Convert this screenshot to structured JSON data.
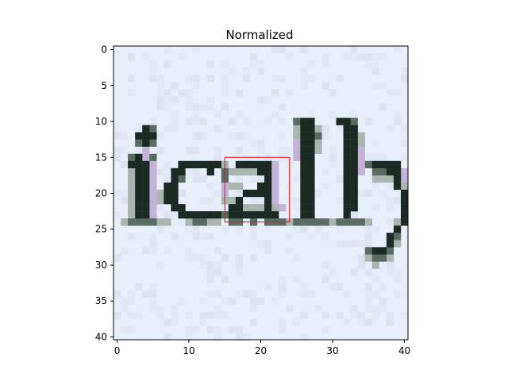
{
  "chart_data": {
    "type": "heatmap",
    "title": "Normalized",
    "image_description_text": "ically",
    "xlim": [
      -0.5,
      40.5
    ],
    "ylim": [
      40.5,
      -0.5
    ],
    "xticks": [
      0,
      10,
      20,
      30,
      40
    ],
    "yticks": [
      0,
      5,
      10,
      15,
      20,
      25,
      30,
      35,
      40
    ],
    "grid": false,
    "legend": "none",
    "highlight_box": {
      "x0": 15,
      "y0": 15,
      "x1": 24,
      "y1": 24
    },
    "colors": {
      "background": "#e9eefb",
      "ink": "#1c2a24",
      "ink_mid": "#5a6b63",
      "ink_light": "#a9b5ae",
      "tint_purple": "#c4b2d9",
      "highlight": "#e81a1a"
    },
    "ink_pixels": [
      [
        4,
        11
      ],
      [
        3,
        12
      ],
      [
        4,
        12
      ],
      [
        5,
        12
      ],
      [
        4,
        13
      ],
      [
        3,
        15
      ],
      [
        3,
        16
      ],
      [
        3,
        17
      ],
      [
        3,
        18
      ],
      [
        3,
        19
      ],
      [
        3,
        20
      ],
      [
        3,
        21
      ],
      [
        3,
        22
      ],
      [
        3,
        23
      ],
      [
        4,
        16
      ],
      [
        4,
        17
      ],
      [
        4,
        18
      ],
      [
        4,
        19
      ],
      [
        4,
        20
      ],
      [
        4,
        21
      ],
      [
        4,
        22
      ],
      [
        4,
        23
      ],
      [
        2,
        16
      ],
      [
        9,
        16
      ],
      [
        10,
        16
      ],
      [
        11,
        16
      ],
      [
        12,
        16
      ],
      [
        13,
        16
      ],
      [
        14,
        16
      ],
      [
        8,
        17
      ],
      [
        9,
        17
      ],
      [
        13,
        17
      ],
      [
        8,
        18
      ],
      [
        7,
        19
      ],
      [
        8,
        19
      ],
      [
        7,
        20
      ],
      [
        8,
        20
      ],
      [
        7,
        21
      ],
      [
        8,
        21
      ],
      [
        8,
        22
      ],
      [
        9,
        22
      ],
      [
        9,
        23
      ],
      [
        10,
        23
      ],
      [
        11,
        23
      ],
      [
        12,
        23
      ],
      [
        13,
        23
      ],
      [
        14,
        23
      ],
      [
        17,
        16
      ],
      [
        18,
        16
      ],
      [
        19,
        16
      ],
      [
        20,
        16
      ],
      [
        21,
        16
      ],
      [
        20,
        17
      ],
      [
        21,
        17
      ],
      [
        21,
        18
      ],
      [
        21,
        19
      ],
      [
        20,
        19
      ],
      [
        18,
        20
      ],
      [
        19,
        20
      ],
      [
        20,
        20
      ],
      [
        21,
        20
      ],
      [
        17,
        21
      ],
      [
        21,
        21
      ],
      [
        16,
        22
      ],
      [
        17,
        22
      ],
      [
        21,
        22
      ],
      [
        16,
        23
      ],
      [
        17,
        23
      ],
      [
        18,
        23
      ],
      [
        19,
        23
      ],
      [
        20,
        23
      ],
      [
        21,
        23
      ],
      [
        22,
        23
      ],
      [
        26,
        10
      ],
      [
        26,
        11
      ],
      [
        26,
        12
      ],
      [
        26,
        13
      ],
      [
        26,
        14
      ],
      [
        26,
        15
      ],
      [
        26,
        16
      ],
      [
        26,
        17
      ],
      [
        26,
        18
      ],
      [
        26,
        19
      ],
      [
        26,
        20
      ],
      [
        26,
        21
      ],
      [
        26,
        22
      ],
      [
        26,
        23
      ],
      [
        27,
        10
      ],
      [
        27,
        11
      ],
      [
        27,
        12
      ],
      [
        27,
        13
      ],
      [
        27,
        14
      ],
      [
        27,
        15
      ],
      [
        27,
        16
      ],
      [
        27,
        17
      ],
      [
        27,
        18
      ],
      [
        27,
        19
      ],
      [
        27,
        20
      ],
      [
        27,
        21
      ],
      [
        27,
        22
      ],
      [
        27,
        23
      ],
      [
        31,
        10
      ],
      [
        32,
        10
      ],
      [
        32,
        11
      ],
      [
        32,
        12
      ],
      [
        32,
        13
      ],
      [
        32,
        14
      ],
      [
        32,
        15
      ],
      [
        32,
        16
      ],
      [
        32,
        17
      ],
      [
        32,
        18
      ],
      [
        32,
        19
      ],
      [
        32,
        20
      ],
      [
        32,
        21
      ],
      [
        32,
        22
      ],
      [
        32,
        23
      ],
      [
        33,
        11
      ],
      [
        33,
        12
      ],
      [
        33,
        13
      ],
      [
        33,
        14
      ],
      [
        33,
        15
      ],
      [
        33,
        16
      ],
      [
        33,
        17
      ],
      [
        33,
        18
      ],
      [
        33,
        19
      ],
      [
        33,
        20
      ],
      [
        33,
        21
      ],
      [
        33,
        22
      ],
      [
        36,
        16
      ],
      [
        37,
        16
      ],
      [
        38,
        16
      ],
      [
        39,
        16
      ],
      [
        38,
        17
      ],
      [
        39,
        17
      ],
      [
        39,
        18
      ],
      [
        39,
        19
      ],
      [
        40,
        20
      ],
      [
        40,
        21
      ],
      [
        40,
        22
      ],
      [
        40,
        23
      ],
      [
        40,
        24
      ],
      [
        39,
        25
      ],
      [
        38,
        26
      ],
      [
        38,
        27
      ],
      [
        37,
        28
      ],
      [
        36,
        28
      ]
    ],
    "mid_pixels": [
      [
        5,
        11
      ],
      [
        3,
        13
      ],
      [
        5,
        13
      ],
      [
        2,
        15
      ],
      [
        5,
        15
      ],
      [
        2,
        24
      ],
      [
        3,
        24
      ],
      [
        4,
        24
      ],
      [
        5,
        24
      ],
      [
        9,
        18
      ],
      [
        15,
        17
      ],
      [
        15,
        18
      ],
      [
        15,
        23
      ],
      [
        16,
        24
      ],
      [
        17,
        24
      ],
      [
        19,
        24
      ],
      [
        21,
        24
      ],
      [
        22,
        24
      ],
      [
        23,
        24
      ],
      [
        25,
        24
      ],
      [
        26,
        24
      ],
      [
        27,
        24
      ],
      [
        28,
        24
      ],
      [
        29,
        24
      ],
      [
        31,
        24
      ],
      [
        32,
        24
      ],
      [
        33,
        24
      ],
      [
        34,
        24
      ],
      [
        35,
        16
      ],
      [
        36,
        17
      ],
      [
        37,
        17
      ],
      [
        39,
        26
      ],
      [
        38,
        28
      ],
      [
        35,
        28
      ],
      [
        36,
        29
      ],
      [
        37,
        29
      ],
      [
        33,
        10
      ],
      [
        25,
        10
      ],
      [
        28,
        12
      ],
      [
        11,
        24
      ],
      [
        12,
        24
      ]
    ],
    "light_pixels": [
      [
        2,
        17
      ],
      [
        2,
        18
      ],
      [
        2,
        19
      ],
      [
        2,
        20
      ],
      [
        2,
        21
      ],
      [
        2,
        22
      ],
      [
        2,
        23
      ],
      [
        1,
        24
      ],
      [
        6,
        24
      ],
      [
        7,
        24
      ],
      [
        6,
        20
      ],
      [
        6,
        21
      ],
      [
        10,
        24
      ],
      [
        13,
        24
      ],
      [
        14,
        24
      ],
      [
        15,
        16
      ],
      [
        16,
        17
      ],
      [
        17,
        17
      ],
      [
        18,
        17
      ],
      [
        19,
        17
      ],
      [
        16,
        19
      ],
      [
        17,
        19
      ],
      [
        15,
        21
      ],
      [
        16,
        21
      ],
      [
        18,
        22
      ],
      [
        19,
        22
      ],
      [
        20,
        22
      ],
      [
        22,
        22
      ],
      [
        24,
        24
      ],
      [
        25,
        11
      ],
      [
        25,
        12
      ],
      [
        28,
        11
      ],
      [
        28,
        13
      ],
      [
        28,
        14
      ],
      [
        34,
        12
      ],
      [
        34,
        13
      ],
      [
        30,
        24
      ],
      [
        35,
        24
      ],
      [
        36,
        18
      ],
      [
        37,
        18
      ],
      [
        38,
        18
      ],
      [
        40,
        19
      ],
      [
        39,
        24
      ],
      [
        39,
        27
      ],
      [
        35,
        29
      ],
      [
        36,
        30
      ],
      [
        38,
        29
      ]
    ],
    "purple_pixels": [
      [
        4,
        14
      ],
      [
        4,
        15
      ],
      [
        5,
        16
      ],
      [
        5,
        17
      ],
      [
        5,
        18
      ],
      [
        5,
        19
      ],
      [
        5,
        20
      ],
      [
        5,
        21
      ],
      [
        5,
        22
      ],
      [
        5,
        23
      ],
      [
        15,
        19
      ],
      [
        15,
        20
      ],
      [
        22,
        16
      ],
      [
        22,
        17
      ],
      [
        22,
        18
      ],
      [
        22,
        19
      ],
      [
        22,
        20
      ],
      [
        22,
        21
      ],
      [
        23,
        22
      ],
      [
        25,
        13
      ],
      [
        25,
        14
      ],
      [
        25,
        15
      ],
      [
        34,
        14
      ],
      [
        34,
        15
      ],
      [
        34,
        16
      ],
      [
        34,
        17
      ],
      [
        40,
        17
      ],
      [
        40,
        18
      ],
      [
        41,
        19
      ]
    ]
  }
}
